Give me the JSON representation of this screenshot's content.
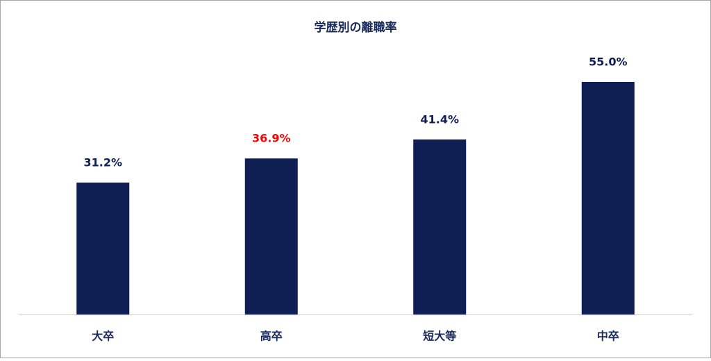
{
  "chart_data": {
    "type": "bar",
    "title": "学歴別の離職率",
    "categories": [
      "大卒",
      "高卒",
      "短大等",
      "中卒"
    ],
    "values": [
      31.2,
      36.9,
      41.4,
      55.0
    ],
    "value_labels": [
      "31.2%",
      "36.9%",
      "41.4%",
      "55.0%"
    ],
    "value_label_colors": [
      "#0f1f54",
      "#ff0000",
      "#0f1f54",
      "#0f1f54"
    ],
    "color": "#0f1f54"
  }
}
